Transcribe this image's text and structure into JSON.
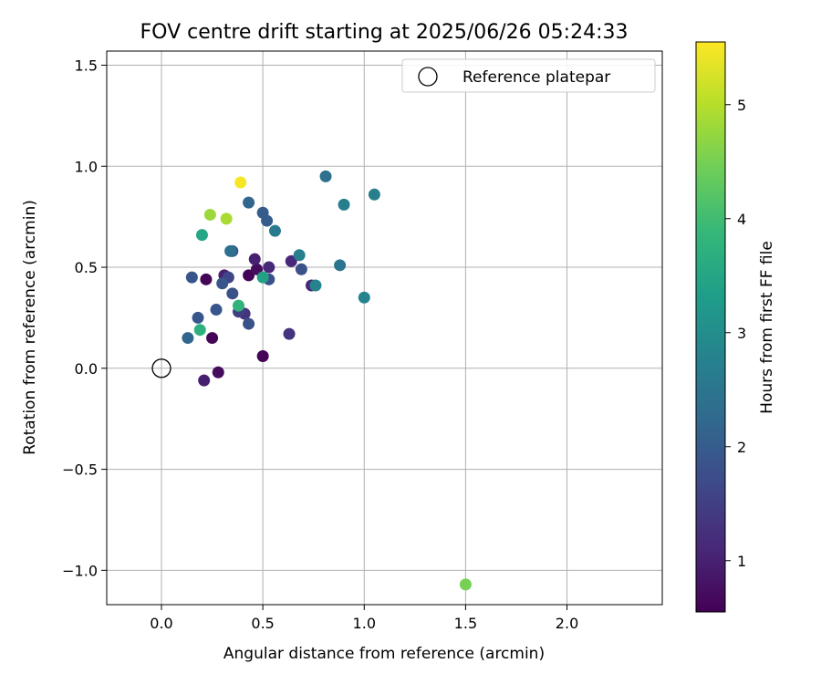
{
  "chart_data": {
    "type": "scatter",
    "title": "FOV centre drift starting at 2025/06/26 05:24:33",
    "xlabel": "Angular distance from reference (arcmin)",
    "ylabel": "Rotation from reference (arcmin)",
    "xlim": [
      -0.27,
      2.47
    ],
    "ylim": [
      -1.17,
      1.57
    ],
    "xticks": [
      0.0,
      0.5,
      1.0,
      1.5,
      2.0
    ],
    "xtick_labels": [
      "0.0",
      "0.5",
      "1.0",
      "1.5",
      "2.0"
    ],
    "yticks": [
      -1.0,
      -0.5,
      0.0,
      0.5,
      1.0,
      1.5
    ],
    "ytick_labels": [
      "−1.0",
      "−0.5",
      "0.0",
      "0.5",
      "1.0",
      "1.5"
    ],
    "grid": true,
    "legend": {
      "placement": "top-right",
      "entries": [
        "Reference platepar"
      ]
    },
    "reference_point": {
      "label": "Reference platepar",
      "x": 0.0,
      "y": 0.0,
      "marker": "open-circle"
    },
    "colorbar": {
      "label": "Hours from first FF file",
      "colormap": "viridis",
      "range": [
        0.55,
        5.55
      ],
      "ticks": [
        1,
        2,
        3,
        4,
        5
      ],
      "tick_labels": [
        "1",
        "2",
        "3",
        "4",
        "5"
      ],
      "stops": [
        "#440154",
        "#482878",
        "#3e4989",
        "#31688e",
        "#26828e",
        "#1f9e89",
        "#35b779",
        "#6ece58",
        "#b5de2b",
        "#fde725"
      ]
    },
    "points": [
      {
        "x": 0.22,
        "y": 0.44,
        "hours": 0.6
      },
      {
        "x": 0.25,
        "y": 0.15,
        "hours": 0.6
      },
      {
        "x": 0.28,
        "y": -0.02,
        "hours": 0.7
      },
      {
        "x": 0.43,
        "y": 0.46,
        "hours": 0.6
      },
      {
        "x": 0.5,
        "y": 0.06,
        "hours": 0.6
      },
      {
        "x": 0.47,
        "y": 0.49,
        "hours": 0.7
      },
      {
        "x": 0.21,
        "y": -0.06,
        "hours": 1.0
      },
      {
        "x": 0.31,
        "y": 0.46,
        "hours": 1.0
      },
      {
        "x": 0.46,
        "y": 0.54,
        "hours": 1.0
      },
      {
        "x": 0.53,
        "y": 0.5,
        "hours": 1.1
      },
      {
        "x": 0.64,
        "y": 0.53,
        "hours": 1.1
      },
      {
        "x": 0.74,
        "y": 0.41,
        "hours": 1.1
      },
      {
        "x": 0.63,
        "y": 0.17,
        "hours": 1.3
      },
      {
        "x": 0.41,
        "y": 0.27,
        "hours": 1.3
      },
      {
        "x": 0.38,
        "y": 0.28,
        "hours": 1.5
      },
      {
        "x": 0.33,
        "y": 0.45,
        "hours": 1.6
      },
      {
        "x": 0.35,
        "y": 0.37,
        "hours": 1.8
      },
      {
        "x": 0.43,
        "y": 0.22,
        "hours": 1.8
      },
      {
        "x": 0.53,
        "y": 0.44,
        "hours": 1.8
      },
      {
        "x": 0.69,
        "y": 0.49,
        "hours": 1.8
      },
      {
        "x": 0.15,
        "y": 0.45,
        "hours": 1.9
      },
      {
        "x": 0.18,
        "y": 0.25,
        "hours": 1.9
      },
      {
        "x": 0.27,
        "y": 0.29,
        "hours": 1.9
      },
      {
        "x": 0.3,
        "y": 0.42,
        "hours": 1.9
      },
      {
        "x": 0.35,
        "y": 0.58,
        "hours": 1.9
      },
      {
        "x": 0.5,
        "y": 0.77,
        "hours": 2.0
      },
      {
        "x": 0.52,
        "y": 0.73,
        "hours": 2.0
      },
      {
        "x": 0.43,
        "y": 0.82,
        "hours": 2.2
      },
      {
        "x": 0.13,
        "y": 0.15,
        "hours": 2.2
      },
      {
        "x": 0.81,
        "y": 0.95,
        "hours": 2.4
      },
      {
        "x": 0.34,
        "y": 0.58,
        "hours": 2.4
      },
      {
        "x": 0.88,
        "y": 0.51,
        "hours": 2.5
      },
      {
        "x": 0.56,
        "y": 0.68,
        "hours": 2.6
      },
      {
        "x": 0.68,
        "y": 0.56,
        "hours": 2.7
      },
      {
        "x": 1.05,
        "y": 0.86,
        "hours": 2.7
      },
      {
        "x": 0.9,
        "y": 0.81,
        "hours": 2.7
      },
      {
        "x": 0.76,
        "y": 0.41,
        "hours": 2.8
      },
      {
        "x": 1.0,
        "y": 0.35,
        "hours": 2.8
      },
      {
        "x": 0.5,
        "y": 0.45,
        "hours": 3.4
      },
      {
        "x": 0.2,
        "y": 0.66,
        "hours": 3.5
      },
      {
        "x": 0.19,
        "y": 0.19,
        "hours": 3.7
      },
      {
        "x": 0.38,
        "y": 0.31,
        "hours": 3.8
      },
      {
        "x": 1.5,
        "y": -1.07,
        "hours": 4.5
      },
      {
        "x": 0.24,
        "y": 0.76,
        "hours": 4.8
      },
      {
        "x": 0.32,
        "y": 0.74,
        "hours": 4.9
      },
      {
        "x": 0.39,
        "y": 0.92,
        "hours": 5.5
      }
    ]
  }
}
